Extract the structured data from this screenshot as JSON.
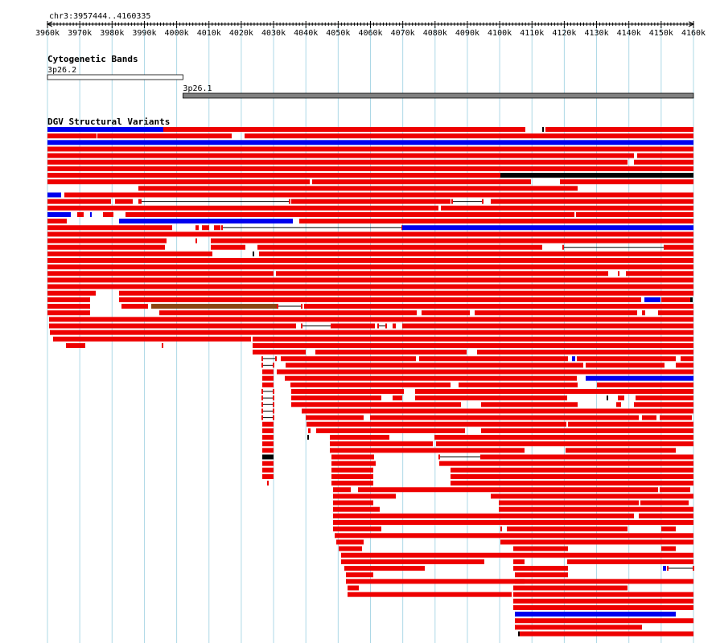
{
  "browser": {
    "location": "chr3:3957444..4160335",
    "ruler_ticks": [
      "3960k",
      "3970k",
      "3980k",
      "3990k",
      "4000k",
      "4010k",
      "4020k",
      "4030k",
      "4040k",
      "4050k",
      "4060k",
      "4070k",
      "4080k",
      "4090k",
      "4100k",
      "4110k",
      "4120k",
      "4130k",
      "4140k",
      "4150k",
      "4160k"
    ],
    "tracks": {
      "cytoband": {
        "title": "Cytogenetic Bands",
        "bands": [
          {
            "name": "3p26.2",
            "start": 3957444,
            "end": 4000000,
            "stain": "gneg"
          },
          {
            "name": "3p26.1",
            "start": 4000000,
            "end": 4160335,
            "stain": "gpos"
          }
        ]
      },
      "dgv": {
        "title": "DGV Structural Variants"
      }
    },
    "colors": {
      "loss": "#ee0000",
      "gain": "#0000ee",
      "complex": "#000000",
      "inversion": "#8b4513",
      "gridline": "#add8e6",
      "band_gpos": "#808080",
      "band_gneg": "#ffffff"
    }
  }
}
